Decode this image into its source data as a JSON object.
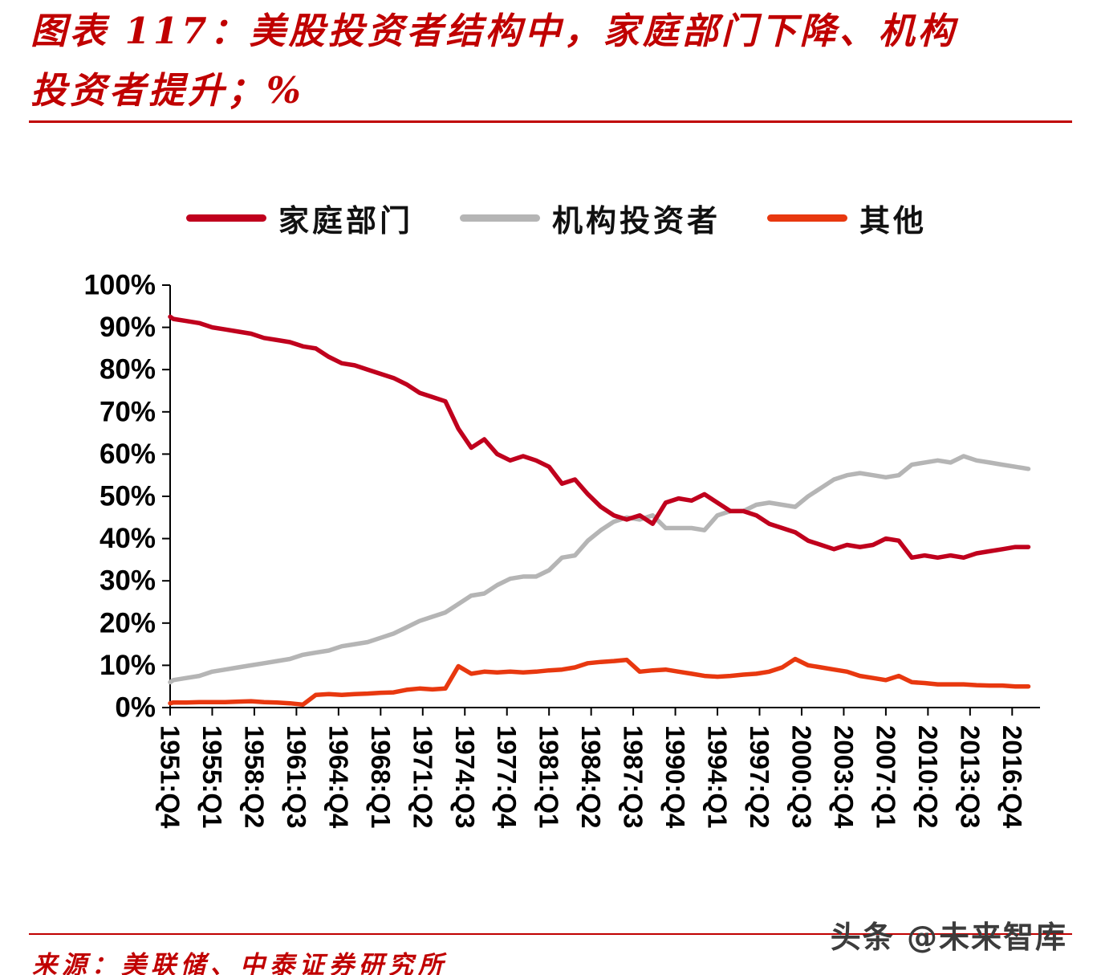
{
  "page": {
    "background": "#ffffff",
    "accent_color": "#c00000"
  },
  "header": {
    "title_line1": "图表 117：美股投资者结构中，家庭部门下降、机构",
    "title_line2": "投资者提升；%"
  },
  "legend": {
    "items": [
      {
        "label": "家庭部门",
        "color": "#c0001d"
      },
      {
        "label": "机构投资者",
        "color": "#b5b5b5"
      },
      {
        "label": "其他",
        "color": "#e8380f"
      }
    ]
  },
  "chart_data": {
    "type": "line",
    "title": "图表 117：美股投资者结构中，家庭部门下降、机构投资者提升；%",
    "xlabel": "",
    "ylabel": "%",
    "ylim": [
      0,
      100
    ],
    "xlim": [
      1951.75,
      2018.9
    ],
    "grid": false,
    "legend_position": "top",
    "y_ticks": [
      {
        "label": "0%",
        "value": 0
      },
      {
        "label": "10%",
        "value": 10
      },
      {
        "label": "20%",
        "value": 20
      },
      {
        "label": "30%",
        "value": 30
      },
      {
        "label": "40%",
        "value": 40
      },
      {
        "label": "50%",
        "value": 50
      },
      {
        "label": "60%",
        "value": 60
      },
      {
        "label": "70%",
        "value": 70
      },
      {
        "label": "80%",
        "value": 80
      },
      {
        "label": "90%",
        "value": 90
      },
      {
        "label": "100%",
        "value": 100
      }
    ],
    "x_ticks": [
      {
        "label": "1951:Q4",
        "year": 1951.75
      },
      {
        "label": "1955:Q1",
        "year": 1955.0
      },
      {
        "label": "1958:Q2",
        "year": 1958.25
      },
      {
        "label": "1961:Q3",
        "year": 1961.5
      },
      {
        "label": "1964:Q4",
        "year": 1964.75
      },
      {
        "label": "1968:Q1",
        "year": 1968.0
      },
      {
        "label": "1971:Q2",
        "year": 1971.25
      },
      {
        "label": "1974:Q3",
        "year": 1974.5
      },
      {
        "label": "1977:Q4",
        "year": 1977.75
      },
      {
        "label": "1981:Q1",
        "year": 1981.0
      },
      {
        "label": "1984:Q2",
        "year": 1984.25
      },
      {
        "label": "1987:Q3",
        "year": 1987.5
      },
      {
        "label": "1990:Q4",
        "year": 1990.75
      },
      {
        "label": "1994:Q1",
        "year": 1994.0
      },
      {
        "label": "1997:Q2",
        "year": 1997.25
      },
      {
        "label": "2000:Q3",
        "year": 2000.5
      },
      {
        "label": "2003:Q4",
        "year": 2003.75
      },
      {
        "label": "2007:Q1",
        "year": 2007.0
      },
      {
        "label": "2010:Q2",
        "year": 2010.25
      },
      {
        "label": "2013:Q3",
        "year": 2013.5
      },
      {
        "label": "2016:Q4",
        "year": 2016.75
      }
    ],
    "x": [
      1951.75,
      1952,
      1953,
      1954,
      1955,
      1956,
      1957,
      1958,
      1959,
      1960,
      1961,
      1962,
      1963,
      1964,
      1965,
      1966,
      1967,
      1968,
      1969,
      1970,
      1971,
      1972,
      1973,
      1974,
      1975,
      1976,
      1977,
      1978,
      1979,
      1980,
      1981,
      1982,
      1983,
      1984,
      1985,
      1986,
      1987,
      1988,
      1989,
      1990,
      1991,
      1992,
      1993,
      1994,
      1995,
      1996,
      1997,
      1998,
      1999,
      2000,
      2001,
      2002,
      2003,
      2004,
      2005,
      2006,
      2007,
      2008,
      2009,
      2010,
      2011,
      2012,
      2013,
      2014,
      2015,
      2016,
      2017,
      2018
    ],
    "series": [
      {
        "name": "家庭部门",
        "color": "#c0001d",
        "values": [
          92.5,
          92,
          91.5,
          91,
          90,
          89.5,
          89,
          88.5,
          87.5,
          87,
          86.5,
          85.5,
          85,
          83,
          81.5,
          81,
          80,
          79,
          78,
          76.5,
          74.5,
          73.5,
          72.5,
          66,
          61.5,
          63.5,
          60,
          58.5,
          59.5,
          58.5,
          57,
          53,
          54,
          50.5,
          47.5,
          45.5,
          44.5,
          45.5,
          43.5,
          48.5,
          49.5,
          49,
          50.5,
          48.5,
          46.5,
          46.5,
          45.5,
          43.5,
          42.5,
          41.5,
          39.5,
          38.5,
          37.5,
          38.5,
          38,
          38.5,
          40,
          39.5,
          35.5,
          36,
          35.5,
          36,
          35.5,
          36.5,
          37,
          37.5,
          38,
          38
        ]
      },
      {
        "name": "机构投资者",
        "color": "#b5b5b5",
        "values": [
          6,
          6.5,
          7,
          7.5,
          8.5,
          9,
          9.5,
          10,
          10.5,
          11,
          11.5,
          12.5,
          13,
          13.5,
          14.5,
          15,
          15.5,
          16.5,
          17.5,
          19,
          20.5,
          21.5,
          22.5,
          24.5,
          26.5,
          27,
          29,
          30.5,
          31,
          31,
          32.5,
          35.5,
          36,
          39.5,
          42,
          44,
          45,
          44.5,
          45.5,
          42.5,
          42.5,
          42.5,
          42,
          45.5,
          46.5,
          46.5,
          48,
          48.5,
          48,
          47.5,
          50,
          52,
          54,
          55,
          55.5,
          55,
          54.5,
          55,
          57.5,
          58,
          58.5,
          58,
          59.5,
          58.5,
          58,
          57.5,
          57,
          56.5
        ]
      },
      {
        "name": "其他",
        "color": "#e8380f",
        "values": [
          1,
          1.2,
          1.2,
          1.3,
          1.3,
          1.3,
          1.4,
          1.5,
          1.3,
          1.2,
          1,
          0.7,
          3,
          3.2,
          3,
          3.2,
          3.3,
          3.5,
          3.6,
          4.2,
          4.5,
          4.3,
          4.5,
          9.8,
          8,
          8.5,
          8.3,
          8.5,
          8.3,
          8.5,
          8.8,
          9,
          9.5,
          10.5,
          10.8,
          11,
          11.3,
          8.5,
          8.8,
          9,
          8.5,
          8,
          7.5,
          7.3,
          7.5,
          7.8,
          8,
          8.5,
          9.5,
          11.5,
          10,
          9.5,
          9,
          8.5,
          7.5,
          7,
          6.5,
          7.5,
          6,
          5.8,
          5.5,
          5.5,
          5.5,
          5.3,
          5.2,
          5.2,
          5,
          5
        ]
      }
    ]
  },
  "footer": {
    "source": "来源：美联储、中泰证券研究所",
    "watermark": "头条 @未来智库"
  }
}
